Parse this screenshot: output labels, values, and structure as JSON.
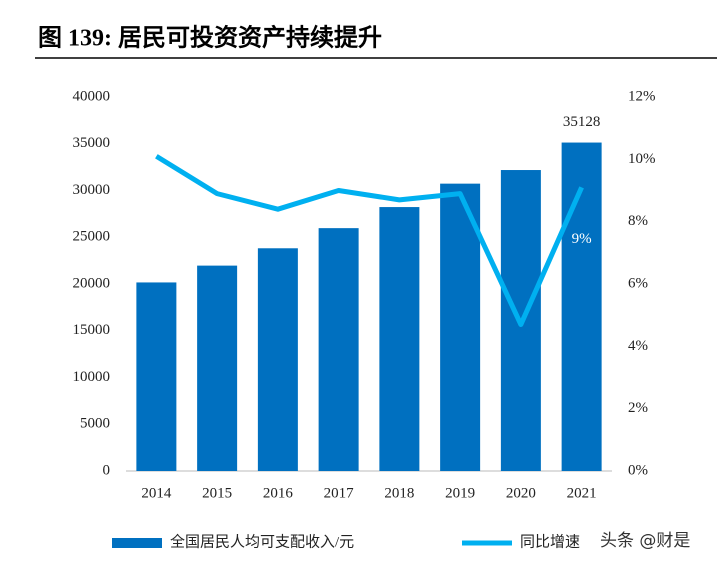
{
  "chart_data": {
    "type": "bar-line",
    "title": "图 139: 居民可投资资产持续提升",
    "categories": [
      "2014",
      "2015",
      "2016",
      "2017",
      "2018",
      "2019",
      "2020",
      "2021"
    ],
    "series": [
      {
        "name": "全国居民人均可支配收入/元",
        "type": "bar",
        "color": "#0070c0",
        "values": [
          20167,
          21966,
          23821,
          25974,
          28228,
          30733,
          32189,
          35128
        ],
        "value_labels": [
          null,
          null,
          null,
          null,
          null,
          null,
          null,
          "35128"
        ]
      },
      {
        "name": "同比增速",
        "type": "line",
        "axis": "y2",
        "color": "#00b0f0",
        "values": [
          10.1,
          8.9,
          8.4,
          9.0,
          8.7,
          8.9,
          4.7,
          9.1
        ],
        "value_labels": [
          null,
          null,
          null,
          null,
          null,
          null,
          null,
          "9%"
        ]
      }
    ],
    "ylim": [
      0,
      40000
    ],
    "yticks": [
      0,
      5000,
      10000,
      15000,
      20000,
      25000,
      30000,
      35000,
      40000
    ],
    "y2lim": [
      0,
      12
    ],
    "y2ticks": [
      {
        "value": 0,
        "label": "0%"
      },
      {
        "value": 2,
        "label": "2%"
      },
      {
        "value": 4,
        "label": "4%"
      },
      {
        "value": 6,
        "label": "6%"
      },
      {
        "value": 8,
        "label": "8%"
      },
      {
        "value": 10,
        "label": "10%"
      },
      {
        "value": 12,
        "label": "12%"
      }
    ],
    "legend": "bottom",
    "watermark": "头条 @财是"
  }
}
